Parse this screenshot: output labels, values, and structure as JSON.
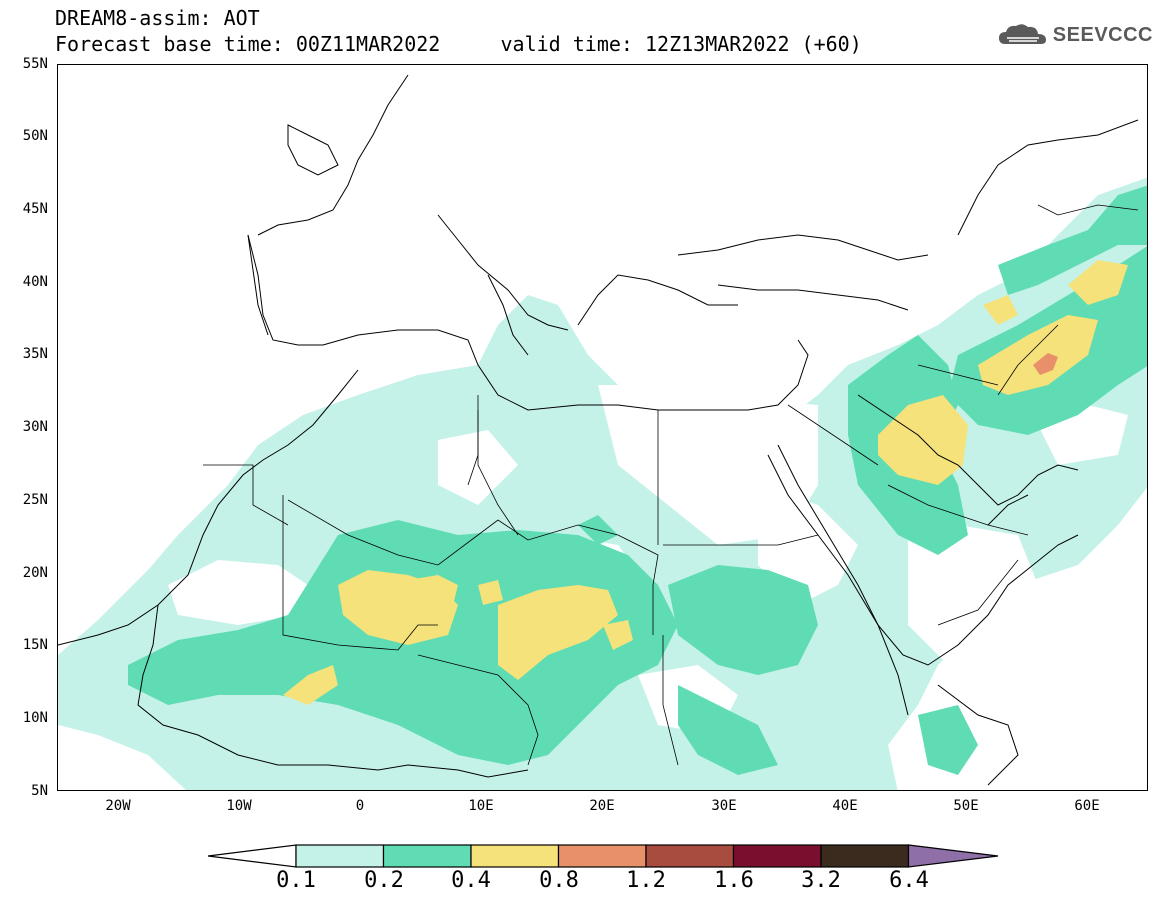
{
  "header": {
    "line1": "DREAM8-assim: AOT",
    "line2": "Forecast base time: 00Z11MAR2022     valid time: 12Z13MAR2022 (+60)",
    "logo_text": "SEEVCCC",
    "logo_icon": "cloud-icon"
  },
  "map": {
    "variable": "AOT",
    "projection": "cylindrical",
    "lon_range": [
      -25,
      65
    ],
    "lat_range": [
      5,
      55
    ],
    "lat_labels": [
      "55N",
      "50N",
      "45N",
      "40N",
      "35N",
      "30N",
      "25N",
      "20N",
      "15N",
      "10N",
      "5N"
    ],
    "lon_labels": [
      "20W",
      "10W",
      "0",
      "10E",
      "20E",
      "30E",
      "40E",
      "50E",
      "60E"
    ]
  },
  "colorbar": {
    "labels": [
      "0.1",
      "0.2",
      "0.4",
      "0.8",
      "1.2",
      "1.6",
      "3.2",
      "6.4"
    ],
    "colors": [
      "#ffffff",
      "#c5f2e8",
      "#5fdcb4",
      "#f5e27a",
      "#e8906a",
      "#a84c3f",
      "#7a0e2e",
      "#3b2a1e",
      "#8e6fa8"
    ]
  }
}
